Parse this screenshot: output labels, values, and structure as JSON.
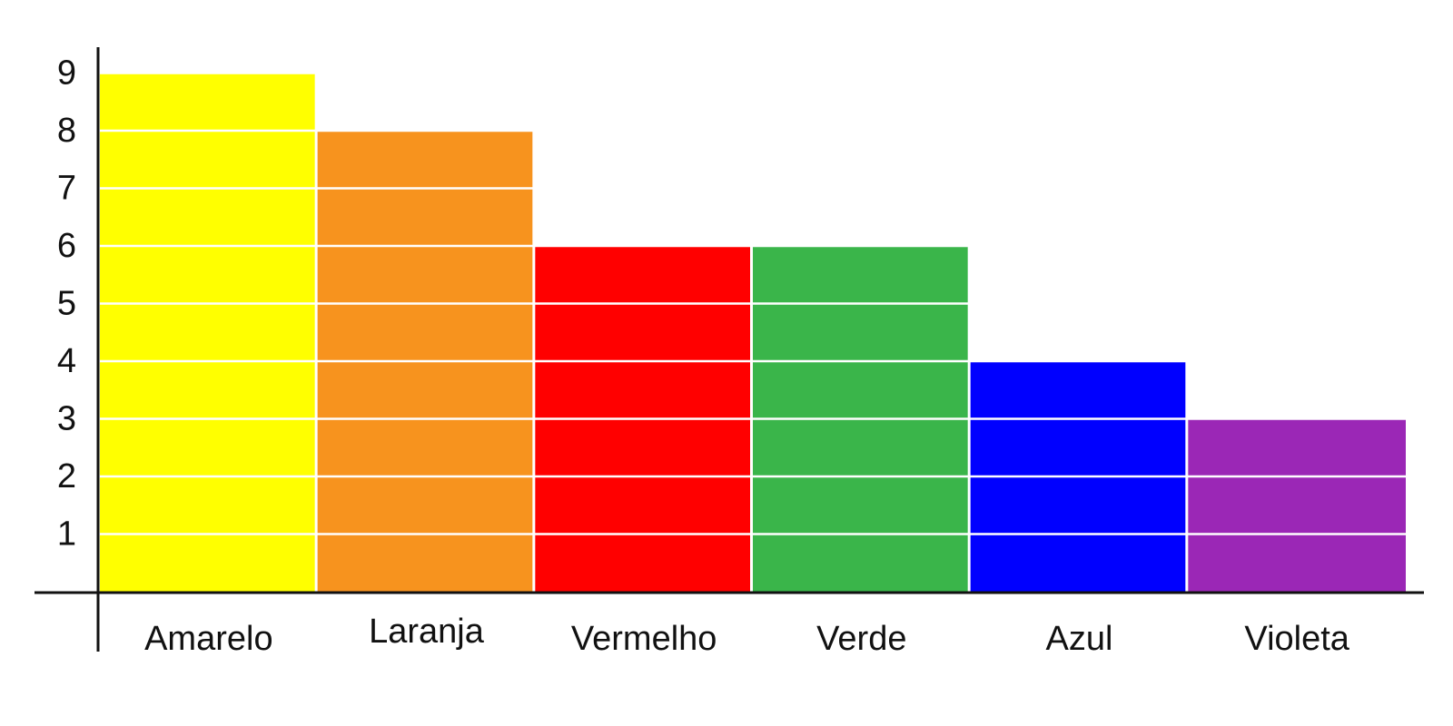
{
  "chart_data": {
    "type": "bar",
    "categories": [
      "Amarelo",
      "Laranja",
      "Vermelho",
      "Verde",
      "Azul",
      "Violeta"
    ],
    "values": [
      9,
      8,
      6,
      6,
      4,
      3
    ],
    "colors": [
      "#ffff00",
      "#f7931e",
      "#ff0000",
      "#3ab54a",
      "#0000ff",
      "#9b27b6"
    ],
    "y_ticks": [
      "1",
      "2",
      "3",
      "4",
      "5",
      "6",
      "7",
      "8",
      "9"
    ],
    "ylim": [
      0,
      9
    ],
    "grid": "white horizontal lines over bars",
    "legend": "none",
    "title": "",
    "xlabel": "",
    "ylabel": ""
  }
}
